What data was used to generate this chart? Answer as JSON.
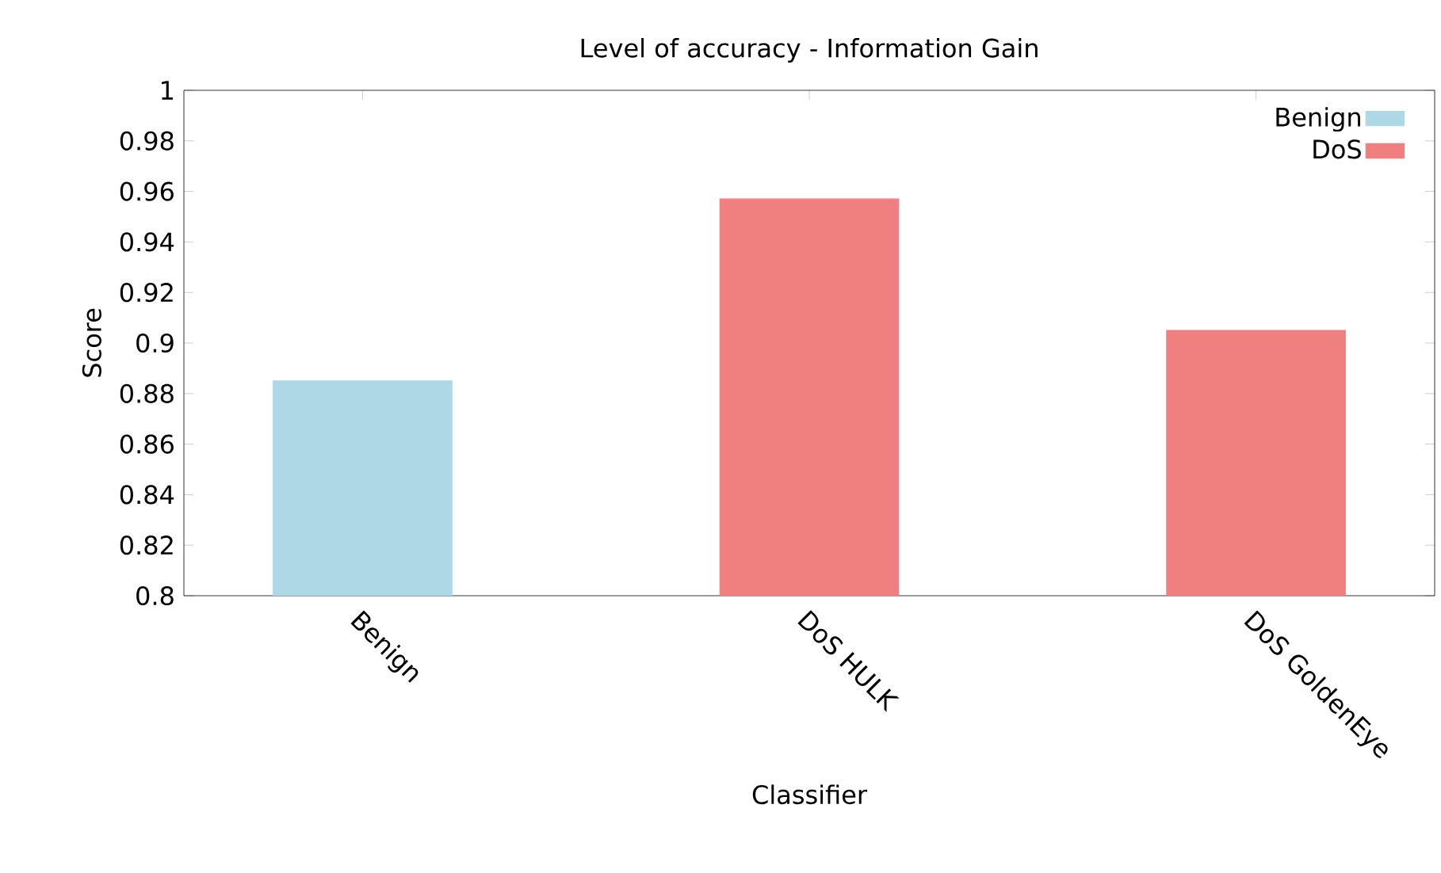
{
  "chart_data": {
    "type": "bar",
    "title": "Level of accuracy - Information Gain",
    "xlabel": "Classifier",
    "ylabel": "Score",
    "categories": [
      "Benign",
      "DoS HULK",
      "DoS GoldenEye"
    ],
    "series": [
      {
        "name": "Benign",
        "color": "#add8e6",
        "values": [
          0.885,
          null,
          null
        ]
      },
      {
        "name": "DoS",
        "color": "#f08080",
        "values": [
          null,
          0.957,
          0.905
        ]
      }
    ],
    "ylim": [
      0.8,
      1
    ],
    "yticks": [
      0.8,
      0.82,
      0.84,
      0.86,
      0.88,
      0.9,
      0.92,
      0.94,
      0.96,
      0.98,
      1
    ],
    "grid": false,
    "legend": "top right"
  }
}
